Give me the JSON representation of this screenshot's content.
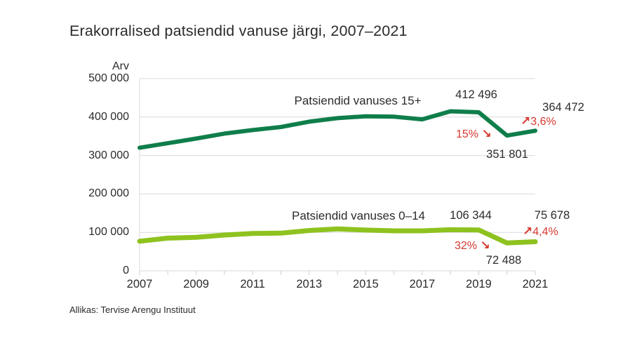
{
  "title": "Erakorralised patsiendid vanuse järgi, 2007–2021",
  "source": "Allikas: Tervise Arengu Instituut",
  "colors": {
    "series_15plus": "#0f7e4a",
    "series_0_14": "#8ec21f",
    "accent_red": "#d5382e",
    "grid": "#d9d9d9",
    "text": "#2b2b2b"
  },
  "axis": {
    "y_unit_label": "Arv",
    "y_ticks": [
      "500 000",
      "400 000",
      "300 000",
      "200 000",
      "100 000",
      "0"
    ],
    "x_tick_labels": [
      "2007",
      "2009",
      "2011",
      "2013",
      "2015",
      "2017",
      "2019",
      "2021"
    ]
  },
  "series_labels": {
    "older": "Patsiendid vanuses 15+",
    "younger": "Patsiendid vanuses 0–14"
  },
  "callouts": {
    "older_peak": "412 496",
    "older_end": "364 472",
    "older_rise_pct": "3,6%",
    "older_drop_pct": "15%",
    "older_dip": "351 801",
    "younger_peak": "106 344",
    "younger_end": "75 678",
    "younger_rise_pct": "4,4%",
    "younger_drop_pct": "32%",
    "younger_dip": "72 488",
    "up_arrow": "↗",
    "down_arrow": "↘"
  },
  "chart_data": {
    "type": "line",
    "title": "Erakorralised patsiendid vanuse järgi, 2007–2021",
    "xlabel": "",
    "ylabel": "Arv",
    "ylim": [
      0,
      500000
    ],
    "grid": "horizontal",
    "legend_position": "inline-labels",
    "x": [
      2007,
      2008,
      2009,
      2010,
      2011,
      2012,
      2013,
      2014,
      2015,
      2016,
      2017,
      2018,
      2019,
      2020,
      2021
    ],
    "x_tick_labels": [
      "2007",
      "2009",
      "2011",
      "2013",
      "2015",
      "2017",
      "2019",
      "2021"
    ],
    "series": [
      {
        "name": "Patsiendid vanuses 15+",
        "color": "#0f7e4a",
        "values": [
          320000,
          332000,
          344000,
          357000,
          366000,
          374000,
          388000,
          397000,
          402000,
          401000,
          394000,
          415000,
          412496,
          351801,
          364472
        ]
      },
      {
        "name": "Patsiendid vanuses 0–14",
        "color": "#8ec21f",
        "values": [
          77000,
          85000,
          87000,
          93000,
          97000,
          98000,
          105000,
          109000,
          106000,
          104000,
          104000,
          107000,
          106344,
          72488,
          75678
        ]
      }
    ],
    "annotations": [
      {
        "series": "Patsiendid vanuses 15+",
        "x": 2019,
        "label": "412 496"
      },
      {
        "series": "Patsiendid vanuses 15+",
        "x": 2020,
        "label": "351 801"
      },
      {
        "series": "Patsiendid vanuses 15+",
        "x": 2021,
        "label": "364 472"
      },
      {
        "series": "Patsiendid vanuses 15+",
        "change": "-15%",
        "label": "15%",
        "direction": "down"
      },
      {
        "series": "Patsiendid vanuses 15+",
        "change": "+3,6%",
        "label": "3,6%",
        "direction": "up"
      },
      {
        "series": "Patsiendid vanuses 0–14",
        "x": 2019,
        "label": "106 344"
      },
      {
        "series": "Patsiendid vanuses 0–14",
        "x": 2020,
        "label": "72 488"
      },
      {
        "series": "Patsiendid vanuses 0–14",
        "x": 2021,
        "label": "75 678"
      },
      {
        "series": "Patsiendid vanuses 0–14",
        "change": "-32%",
        "label": "32%",
        "direction": "down"
      },
      {
        "series": "Patsiendid vanuses 0–14",
        "change": "+4,4%",
        "label": "4,4%",
        "direction": "up"
      }
    ],
    "source": "Allikas: Tervise Arengu Instituut"
  }
}
